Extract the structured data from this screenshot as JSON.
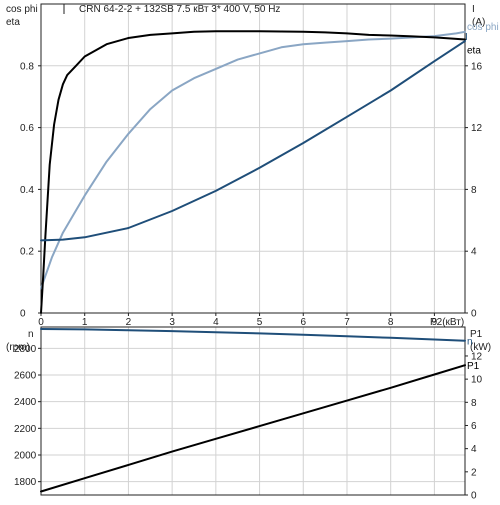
{
  "chart_data": [
    {
      "type": "line",
      "title": "CRN 64-2-2 + 132SB    7.5 кВт   3* 400 V, 50 Hz",
      "left_axis_labels": [
        "cos phi",
        "eta"
      ],
      "right_axis_labels": [
        "I",
        "(A)"
      ],
      "xlabel": "P2(кВт)",
      "xlim": [
        0,
        9.7
      ],
      "ylim_left": [
        0,
        1.0
      ],
      "ylim_right": [
        0,
        20
      ],
      "x_ticks": [
        "0",
        "1",
        "2",
        "3",
        "4",
        "5",
        "6",
        "7",
        "8",
        "9"
      ],
      "y_left_ticks": [
        "0",
        "0.2",
        "0.4",
        "0.6",
        "0.8"
      ],
      "y_right_ticks": [
        "0",
        "4",
        "8",
        "12",
        "16"
      ],
      "grid": true,
      "series": [
        {
          "name": "cos phi",
          "axis": "left",
          "color": "#8aa6c4",
          "x": [
            0.0,
            0.25,
            0.5,
            0.75,
            1.0,
            1.5,
            2.0,
            2.5,
            3.0,
            3.5,
            4.0,
            4.5,
            5.0,
            5.5,
            6.0,
            6.5,
            7.0,
            7.5,
            8.0,
            8.5,
            9.0,
            9.5,
            9.7
          ],
          "y": [
            0.08,
            0.18,
            0.26,
            0.32,
            0.38,
            0.49,
            0.58,
            0.66,
            0.72,
            0.76,
            0.79,
            0.82,
            0.84,
            0.86,
            0.87,
            0.875,
            0.88,
            0.885,
            0.888,
            0.892,
            0.896,
            0.905,
            0.91
          ]
        },
        {
          "name": "eta",
          "axis": "left",
          "color": "#000000",
          "x": [
            0.0,
            0.05,
            0.1,
            0.2,
            0.3,
            0.4,
            0.5,
            0.6,
            0.8,
            1.0,
            1.5,
            2.0,
            2.5,
            3.0,
            3.5,
            4.0,
            4.5,
            5.0,
            5.5,
            6.0,
            6.5,
            7.0,
            7.5,
            8.0,
            8.5,
            9.0,
            9.5,
            9.7
          ],
          "y": [
            0.0,
            0.12,
            0.25,
            0.48,
            0.61,
            0.69,
            0.74,
            0.77,
            0.8,
            0.83,
            0.87,
            0.89,
            0.9,
            0.905,
            0.91,
            0.912,
            0.912,
            0.912,
            0.911,
            0.91,
            0.908,
            0.905,
            0.9,
            0.898,
            0.895,
            0.892,
            0.887,
            0.885
          ]
        },
        {
          "name": "I",
          "axis": "right",
          "color": "#1f4e79",
          "x": [
            0.0,
            0.5,
            1.0,
            2.0,
            3.0,
            4.0,
            5.0,
            6.0,
            7.0,
            8.0,
            9.0,
            9.7
          ],
          "y": [
            4.7,
            4.75,
            4.9,
            5.5,
            6.6,
            7.9,
            9.4,
            11.0,
            12.7,
            14.4,
            16.3,
            17.6
          ]
        }
      ]
    },
    {
      "type": "line",
      "left_axis_labels": [
        "n",
        "(rpm)"
      ],
      "right_axis_labels": [
        "P1",
        "(kW)"
      ],
      "xlim": [
        0,
        9.7
      ],
      "ylim_left": [
        1700,
        2960
      ],
      "ylim_right": [
        0,
        14.5
      ],
      "y_left_ticks": [
        "1800",
        "2000",
        "2200",
        "2400",
        "2600",
        "2800"
      ],
      "y_right_ticks": [
        "0",
        "2",
        "4",
        "6",
        "8",
        "10",
        "12"
      ],
      "grid": true,
      "series": [
        {
          "name": "n",
          "axis": "left",
          "color": "#1f4e79",
          "x": [
            0.0,
            1.0,
            2.0,
            3.0,
            4.0,
            5.0,
            6.0,
            7.0,
            8.0,
            9.0,
            9.7
          ],
          "y": [
            2945,
            2942,
            2936,
            2929,
            2921,
            2912,
            2902,
            2891,
            2879,
            2866,
            2857
          ]
        },
        {
          "name": "P1",
          "axis": "right",
          "color": "#000000",
          "x": [
            0.0,
            1.0,
            2.0,
            3.0,
            4.0,
            5.0,
            6.0,
            7.0,
            8.0,
            9.0,
            9.7
          ],
          "y": [
            0.3,
            1.45,
            2.6,
            3.75,
            4.85,
            5.95,
            7.05,
            8.15,
            9.25,
            10.4,
            11.2
          ]
        }
      ]
    }
  ]
}
